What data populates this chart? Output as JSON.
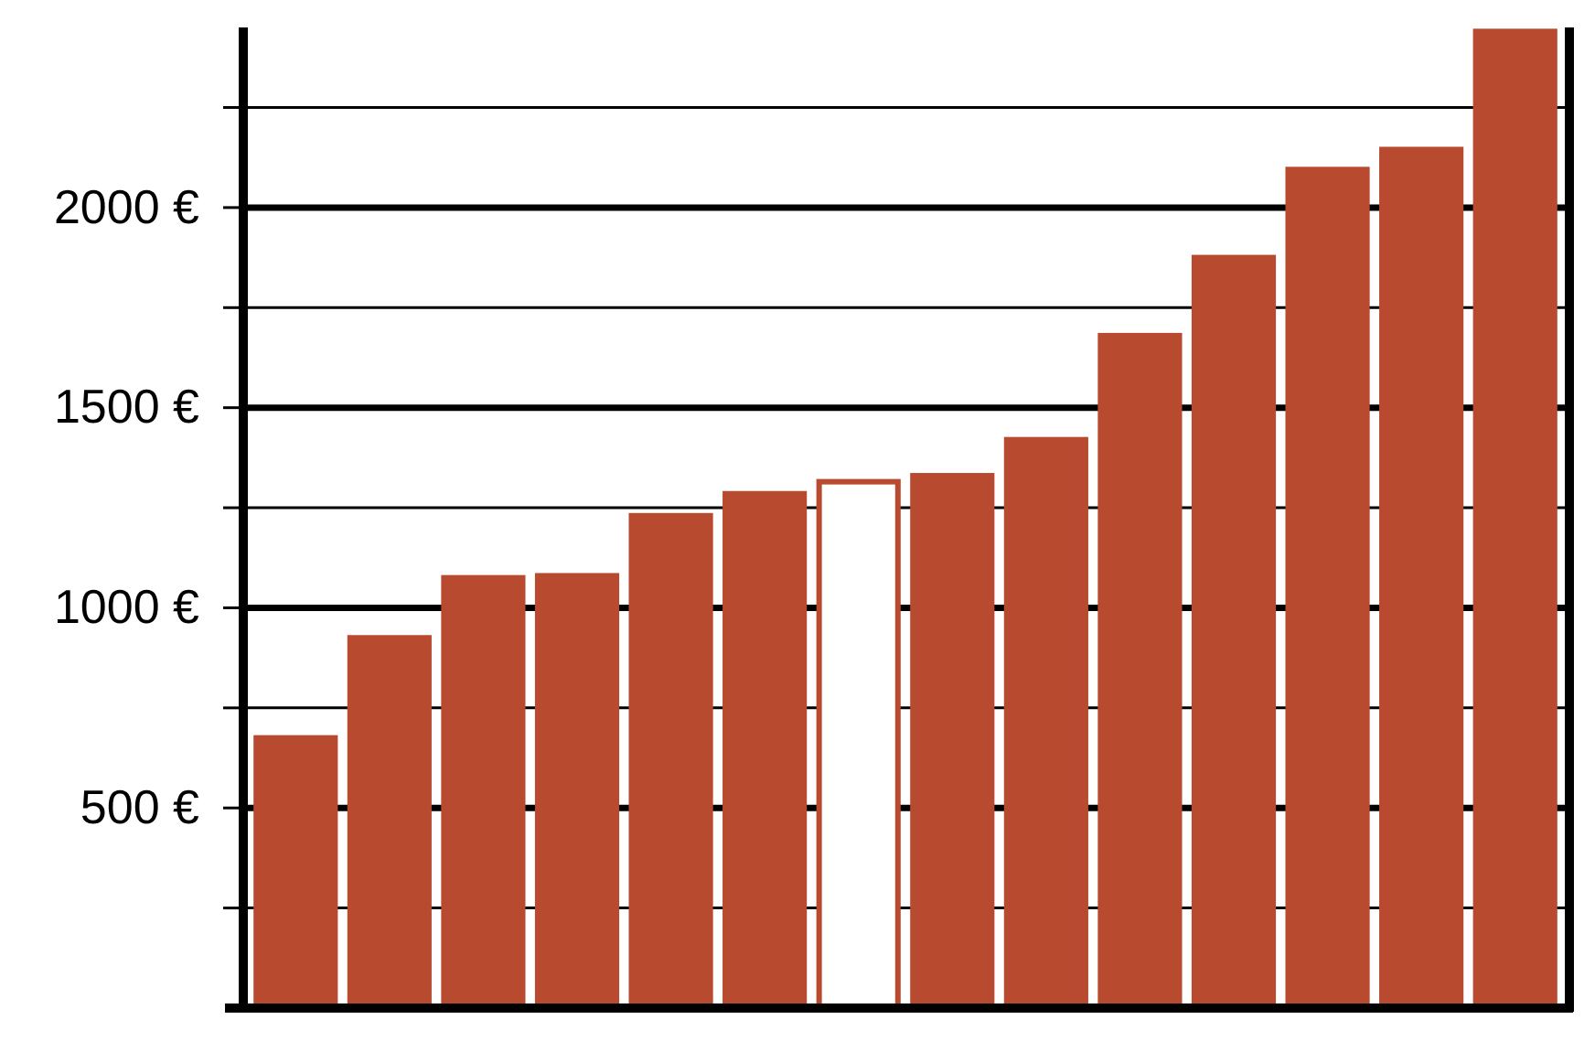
{
  "chart_data": {
    "type": "bar",
    "categories": [
      null,
      null,
      null,
      null,
      null,
      null,
      null,
      null,
      null,
      null,
      null,
      null,
      null,
      null
    ],
    "values": [
      675,
      925,
      1075,
      1080,
      1230,
      1285,
      1315,
      1330,
      1420,
      1680,
      1875,
      2095,
      2145,
      2440
    ],
    "color": "#b84a30",
    "colors": [
      "#b84a30",
      "#b84a30",
      "#b84a30",
      "#b84a30",
      "#b84a30",
      "#b84a30",
      "#ffffff",
      "#b84a30",
      "#b84a30",
      "#b84a30",
      "#b84a30",
      "#b84a30",
      "#b84a30",
      "#b84a30"
    ],
    "ylim": [
      0,
      2450
    ],
    "yticks": [
      {
        "value": 250,
        "label": null
      },
      {
        "value": 500,
        "label": "500 €"
      },
      {
        "value": 750,
        "label": null
      },
      {
        "value": 1000,
        "label": "1000 €"
      },
      {
        "value": 1250,
        "label": null
      },
      {
        "value": 1500,
        "label": "1500 €"
      },
      {
        "value": 1750,
        "label": null
      },
      {
        "value": 2000,
        "label": "2000 €"
      },
      {
        "value": 2250,
        "label": null
      }
    ],
    "grid": true
  }
}
